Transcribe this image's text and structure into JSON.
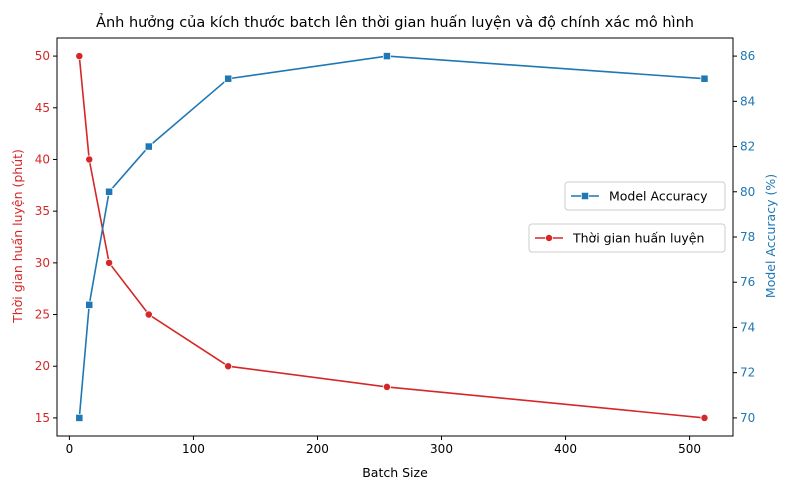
{
  "chart_data": {
    "type": "line",
    "title": "Ảnh hưởng của kích thước batch lên thời gian huấn luyện và độ chính xác mô hình",
    "xlabel": "Batch Size",
    "x": [
      8,
      16,
      32,
      64,
      128,
      256,
      512
    ],
    "xlim": [
      -10,
      535
    ],
    "xticks": [
      0,
      100,
      200,
      300,
      400,
      500
    ],
    "series": [
      {
        "name": "Thời gian huấn luyện",
        "axis": "left",
        "marker": "circle",
        "color": "#d62728",
        "values": [
          50,
          40,
          30,
          25,
          20,
          18,
          15
        ]
      },
      {
        "name": "Model Accuracy",
        "axis": "right",
        "marker": "square",
        "color": "#1f77b4",
        "values": [
          70,
          75,
          80,
          82,
          85,
          86,
          85
        ]
      }
    ],
    "y_left": {
      "label": "Thời gian huấn luyện (phút)",
      "color": "#d62728",
      "ylim": [
        13.25,
        51.75
      ],
      "ticks": [
        15,
        20,
        25,
        30,
        35,
        40,
        45,
        50
      ]
    },
    "y_right": {
      "label": "Model Accuracy (%)",
      "color": "#1f77b4",
      "ylim": [
        69.2,
        86.8
      ],
      "ticks": [
        70,
        72,
        74,
        76,
        78,
        80,
        82,
        84,
        86
      ]
    },
    "legends": [
      {
        "series": "Model Accuracy",
        "placement": "center-right"
      },
      {
        "series": "Thời gian huấn luyện",
        "placement": "center-right"
      }
    ],
    "grid": false
  }
}
